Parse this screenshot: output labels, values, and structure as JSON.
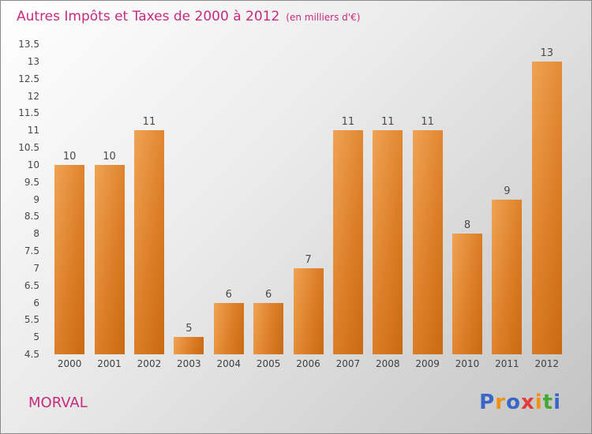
{
  "header": {
    "title": "Autres Impôts et Taxes de 2000 à 2012",
    "subtitle": "(en milliers d'€)",
    "title_color": "#c62b7d"
  },
  "footer": {
    "location_label": "MORVAL",
    "brand_letters": [
      {
        "ch": "P",
        "color": "#3a66c8"
      },
      {
        "ch": "r",
        "color": "#f29111"
      },
      {
        "ch": "o",
        "color": "#3a66c8"
      },
      {
        "ch": "x",
        "color": "#e23b3b"
      },
      {
        "ch": "i",
        "color": "#f29111"
      },
      {
        "ch": "t",
        "color": "#44a832"
      },
      {
        "ch": "i",
        "color": "#3a66c8"
      }
    ]
  },
  "chart_data": {
    "type": "bar",
    "title": "Autres Impôts et Taxes de 2000 à 2012",
    "xlabel": "",
    "ylabel": "",
    "categories": [
      "2000",
      "2001",
      "2002",
      "2003",
      "2004",
      "2005",
      "2006",
      "2007",
      "2008",
      "2009",
      "2010",
      "2011",
      "2012"
    ],
    "values": [
      10,
      10,
      11,
      5,
      6,
      6,
      7,
      11,
      11,
      11,
      8,
      9,
      13
    ],
    "ylim": [
      4.5,
      13.5
    ],
    "ytick_step": 0.5,
    "grid": "off",
    "legend": "none",
    "bar_color": "#d97a22"
  }
}
